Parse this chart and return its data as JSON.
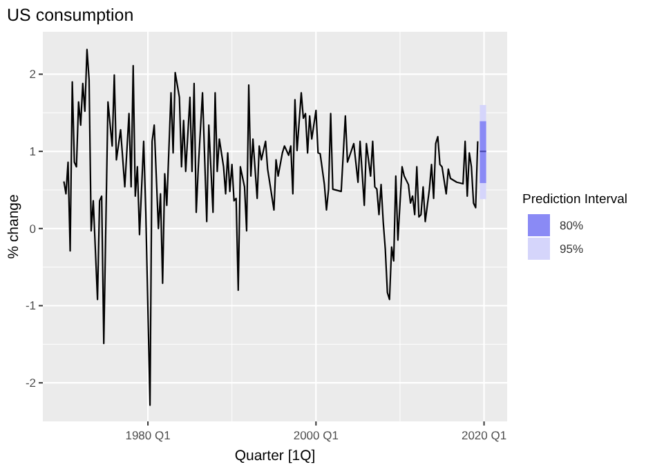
{
  "chart_data": {
    "type": "line",
    "title": "US consumption",
    "xlabel": "Quarter [1Q]",
    "ylabel": "% change",
    "legend_title": "Prediction Interval",
    "legend": "right",
    "grid": true,
    "xlim": [
      "1967-07",
      "2022-10"
    ],
    "xticks": [
      {
        "value": "1980-01",
        "label": "1980 Q1"
      },
      {
        "value": "2000-01",
        "label": "2000 Q1"
      },
      {
        "value": "2020-01",
        "label": "2020 Q1"
      }
    ],
    "ylim": [
      -2.5,
      2.55
    ],
    "yticks": [
      -2,
      -1,
      0,
      1,
      2
    ],
    "series": [
      {
        "color": "#000000",
        "x": [
          "1970-01",
          "1970-04",
          "1970-07",
          "1970-10",
          "1971-01",
          "1971-04",
          "1971-07",
          "1971-10",
          "1972-01",
          "1972-04",
          "1972-07",
          "1972-10",
          "1973-01",
          "1973-04",
          "1973-07",
          "1974-01",
          "1974-04",
          "1974-07",
          "1974-10",
          "1975-04",
          "1975-10",
          "1976-01",
          "1976-04",
          "1976-10",
          "1977-04",
          "1977-10",
          "1978-01",
          "1978-04",
          "1978-07",
          "1978-10",
          "1979-01",
          "1979-07",
          "1979-10",
          "1980-04",
          "1980-07",
          "1980-10",
          "1981-04",
          "1981-07",
          "1981-10",
          "1982-01",
          "1982-04",
          "1982-10",
          "1983-01",
          "1983-04",
          "1983-10",
          "1984-01",
          "1984-04",
          "1984-07",
          "1985-01",
          "1985-04",
          "1985-07",
          "1985-10",
          "1986-01",
          "1986-07",
          "1987-01",
          "1987-04",
          "1987-10",
          "1988-01",
          "1988-04",
          "1988-07",
          "1989-01",
          "1989-04",
          "1989-07",
          "1989-10",
          "1990-01",
          "1990-04",
          "1990-07",
          "1990-10",
          "1991-01",
          "1991-07",
          "1991-10",
          "1992-01",
          "1992-04",
          "1992-07",
          "1993-01",
          "1993-04",
          "1993-07",
          "1994-01",
          "1994-04",
          "1995-01",
          "1995-04",
          "1995-07",
          "1996-01",
          "1996-04",
          "1996-10",
          "1997-01",
          "1997-04",
          "1997-07",
          "1997-10",
          "1998-04",
          "1998-07",
          "1998-10",
          "1999-01",
          "1999-04",
          "1999-07",
          "2000-01",
          "2000-04",
          "2000-07",
          "2001-01",
          "2001-04",
          "2001-07",
          "2001-10",
          "2002-01",
          "2003-01",
          "2003-07",
          "2003-10",
          "2004-07",
          "2005-01",
          "2005-04",
          "2005-10",
          "2006-01",
          "2006-07",
          "2006-10",
          "2007-01",
          "2007-04",
          "2007-07",
          "2007-10",
          "2008-01",
          "2008-04",
          "2008-07",
          "2008-10",
          "2009-01",
          "2009-04",
          "2009-07",
          "2009-10",
          "2010-04",
          "2010-07",
          "2011-01",
          "2011-04",
          "2011-07",
          "2011-10",
          "2012-01",
          "2012-04",
          "2012-07",
          "2012-10",
          "2013-01",
          "2013-07",
          "2013-10",
          "2014-01",
          "2014-04",
          "2014-07",
          "2014-10",
          "2015-01",
          "2015-07",
          "2015-10",
          "2016-01",
          "2016-10",
          "2017-07",
          "2017-10",
          "2018-01",
          "2018-04",
          "2018-07",
          "2018-10",
          "2019-01",
          "2019-04"
        ],
        "values": [
          0.61,
          0.45,
          0.86,
          -0.29,
          1.9,
          0.86,
          0.8,
          1.64,
          1.34,
          1.88,
          1.52,
          2.32,
          1.93,
          -0.03,
          0.36,
          -0.92,
          0.36,
          0.42,
          -1.49,
          1.64,
          1.07,
          1.99,
          0.89,
          1.28,
          0.54,
          1.49,
          0.54,
          2.11,
          0.42,
          0.8,
          -0.08,
          1.13,
          0.21,
          -2.29,
          1.13,
          1.34,
          0.0,
          0.45,
          -0.71,
          0.71,
          0.3,
          1.76,
          0.98,
          2.02,
          1.7,
          0.8,
          1.4,
          0.74,
          1.7,
          0.74,
          1.88,
          0.21,
          0.8,
          1.76,
          0.09,
          1.34,
          0.21,
          1.76,
          0.74,
          1.16,
          0.8,
          0.45,
          0.98,
          0.48,
          0.83,
          0.36,
          0.39,
          -0.8,
          0.8,
          0.54,
          -0.03,
          1.86,
          0.68,
          1.16,
          0.39,
          1.07,
          0.89,
          1.13,
          0.77,
          0.24,
          0.89,
          0.68,
          0.98,
          1.07,
          0.95,
          1.07,
          0.45,
          1.67,
          1.01,
          1.76,
          1.43,
          1.49,
          0.98,
          1.46,
          1.16,
          1.53,
          0.98,
          0.97,
          0.57,
          0.24,
          0.51,
          1.49,
          0.51,
          0.48,
          1.46,
          0.86,
          1.1,
          0.6,
          1.13,
          0.3,
          1.1,
          0.68,
          1.13,
          0.54,
          0.51,
          0.18,
          0.57,
          0.09,
          -0.27,
          -0.83,
          -0.92,
          -0.24,
          -0.42,
          0.68,
          -0.15,
          0.8,
          0.68,
          0.57,
          0.33,
          0.42,
          0.18,
          0.8,
          0.15,
          0.18,
          0.54,
          0.09,
          0.51,
          0.83,
          0.39,
          1.1,
          1.19,
          0.83,
          0.8,
          0.45,
          0.77,
          0.65,
          0.6,
          0.58,
          1.13,
          0.42,
          0.98,
          0.8,
          0.33,
          0.27,
          1.13
        ]
      },
      {
        "name": "80%",
        "color": "#8a8af5",
        "x": [
          "2019-07",
          "2019-10",
          "2020-01",
          "2020-04"
        ],
        "values": [
          null,
          null,
          null,
          null
        ],
        "lower": [
          0.59,
          0.59,
          0.59,
          0.59
        ],
        "upper": [
          1.39,
          1.39,
          1.39,
          1.39
        ]
      },
      {
        "name": "95%",
        "color": "#d5d5fb",
        "x": [
          "2019-07",
          "2019-10",
          "2020-01",
          "2020-04"
        ],
        "values": [
          null,
          null,
          null,
          null
        ],
        "lower": [
          0.38,
          0.38,
          0.38,
          0.38
        ],
        "upper": [
          1.6,
          1.6,
          1.6,
          1.6
        ]
      },
      {
        "color": "#4a4ab0",
        "x": [
          "2019-07",
          "2019-10",
          "2020-01",
          "2020-04"
        ],
        "values": [
          1.0,
          1.0,
          1.0,
          1.0
        ]
      }
    ]
  }
}
